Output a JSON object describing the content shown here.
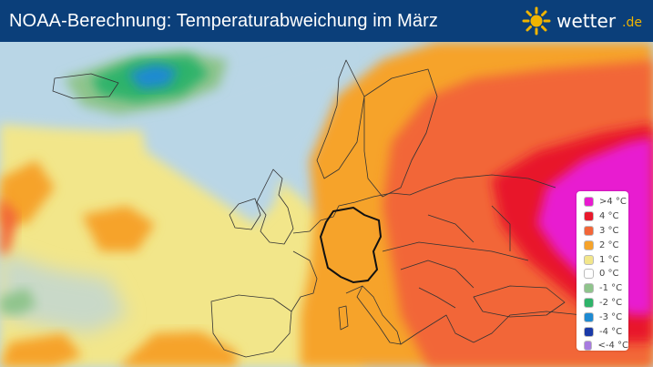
{
  "header": {
    "title": "NOAA-Berechnung: Temperaturabweichung im März",
    "brand_name": "wetter",
    "brand_tld": ".de",
    "brand_icon": "sun-icon",
    "background_color": "#0b3f7a",
    "brand_accent_color": "#f0b400"
  },
  "legend": {
    "items": [
      {
        "label": ">4 °C",
        "color": "#e81ad0"
      },
      {
        "label": "4 °C",
        "color": "#e8192c"
      },
      {
        "label": "3 °C",
        "color": "#f26638"
      },
      {
        "label": "2 °C",
        "color": "#f6a32a"
      },
      {
        "label": "1 °C",
        "color": "#f2e68a"
      },
      {
        "label": "0 °C",
        "color": "#ffffff"
      },
      {
        "label": "-1 °C",
        "color": "#8fc48c"
      },
      {
        "label": "-2 °C",
        "color": "#2fb36a"
      },
      {
        "label": "-3 °C",
        "color": "#1e8ad2"
      },
      {
        "label": "-4 °C",
        "color": "#1a3aa8"
      },
      {
        "label": "<-4 °C",
        "color": "#a77be0"
      }
    ]
  },
  "map": {
    "region": "Europe",
    "water_color": "#b9d6e6",
    "highlighted_country": "Germany"
  }
}
